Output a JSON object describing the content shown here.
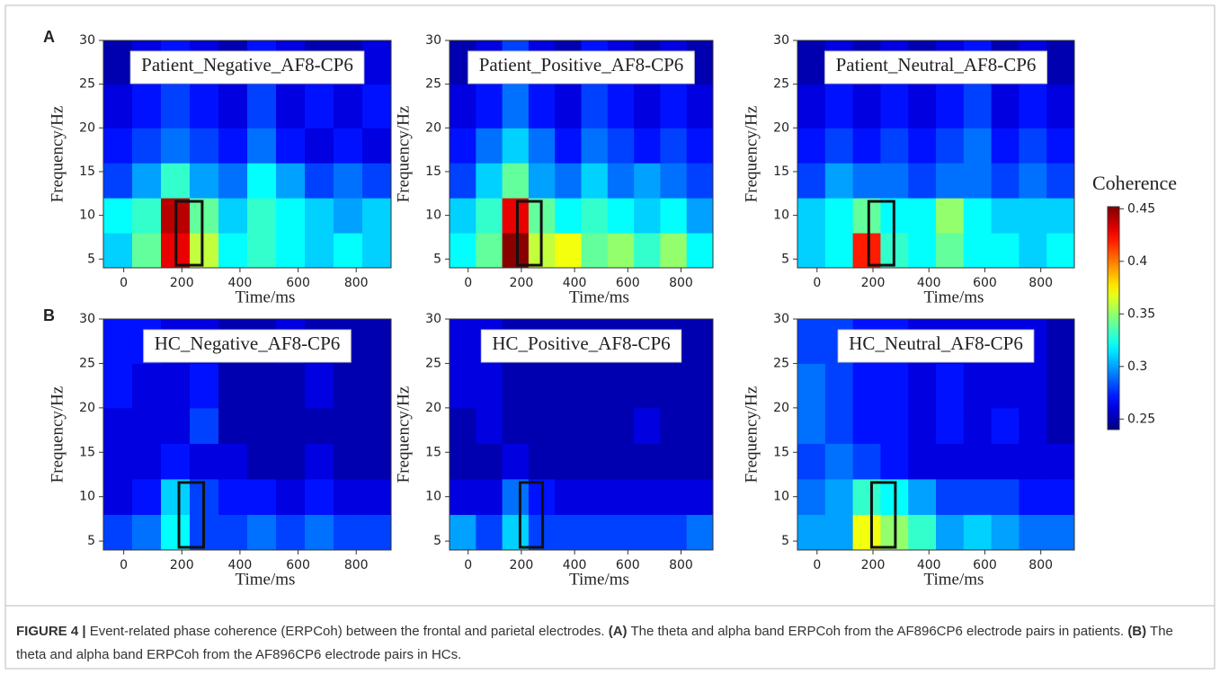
{
  "chart_data": [
    {
      "type": "heatmap",
      "title": "Patient_Negative_AF8-CP6",
      "xlabel": "Time/ms",
      "ylabel": "Frequency/Hz",
      "xlim": [
        -70,
        920
      ],
      "xticks": [
        0,
        200,
        400,
        600,
        800
      ],
      "ylim": [
        4,
        30
      ],
      "yticks": [
        5,
        10,
        15,
        20,
        25,
        30
      ],
      "x_bins": [
        -70,
        29,
        128,
        227,
        326,
        425,
        524,
        623,
        722,
        821,
        920
      ],
      "y_bins": [
        4,
        8,
        12,
        16,
        20,
        25,
        30
      ],
      "values": [
        [
          0.31,
          0.34,
          0.43,
          0.36,
          0.32,
          0.33,
          0.32,
          0.31,
          0.32,
          0.31
        ],
        [
          0.32,
          0.33,
          0.44,
          0.34,
          0.31,
          0.33,
          0.32,
          0.31,
          0.3,
          0.31
        ],
        [
          0.28,
          0.3,
          0.33,
          0.3,
          0.29,
          0.32,
          0.3,
          0.28,
          0.29,
          0.28
        ],
        [
          0.27,
          0.28,
          0.29,
          0.28,
          0.27,
          0.29,
          0.27,
          0.26,
          0.27,
          0.26
        ],
        [
          0.26,
          0.27,
          0.28,
          0.27,
          0.26,
          0.28,
          0.26,
          0.27,
          0.26,
          0.27
        ],
        [
          0.25,
          0.26,
          0.27,
          0.26,
          0.25,
          0.27,
          0.26,
          0.25,
          0.25,
          0.26
        ]
      ],
      "box": {
        "x": [
          180,
          270
        ],
        "y": [
          4.3,
          11.6
        ]
      }
    },
    {
      "type": "heatmap",
      "title": "Patient_Positive_AF8-CP6",
      "xlabel": "Time/ms",
      "ylabel": "Frequency/Hz",
      "xlim": [
        -70,
        920
      ],
      "xticks": [
        0,
        200,
        400,
        600,
        800
      ],
      "ylim": [
        4,
        30
      ],
      "yticks": [
        5,
        10,
        15,
        20,
        25,
        30
      ],
      "x_bins": [
        -70,
        29,
        128,
        227,
        326,
        425,
        524,
        623,
        722,
        821,
        920
      ],
      "y_bins": [
        4,
        8,
        12,
        16,
        20,
        25,
        30
      ],
      "values": [
        [
          0.32,
          0.34,
          0.45,
          0.36,
          0.37,
          0.34,
          0.35,
          0.33,
          0.35,
          0.32
        ],
        [
          0.31,
          0.33,
          0.43,
          0.34,
          0.32,
          0.33,
          0.32,
          0.31,
          0.32,
          0.3
        ],
        [
          0.28,
          0.31,
          0.34,
          0.3,
          0.29,
          0.31,
          0.29,
          0.3,
          0.29,
          0.28
        ],
        [
          0.27,
          0.29,
          0.31,
          0.29,
          0.27,
          0.29,
          0.28,
          0.27,
          0.28,
          0.27
        ],
        [
          0.26,
          0.27,
          0.29,
          0.27,
          0.26,
          0.28,
          0.27,
          0.26,
          0.27,
          0.26
        ],
        [
          0.25,
          0.26,
          0.28,
          0.26,
          0.25,
          0.27,
          0.26,
          0.25,
          0.26,
          0.25
        ]
      ],
      "box": {
        "x": [
          185,
          275
        ],
        "y": [
          4.3,
          11.6
        ]
      }
    },
    {
      "type": "heatmap",
      "title": "Patient_Neutral_AF8-CP6",
      "xlabel": "Time/ms",
      "ylabel": "Frequency/Hz",
      "xlim": [
        -70,
        920
      ],
      "xticks": [
        0,
        200,
        400,
        600,
        800
      ],
      "ylim": [
        4,
        30
      ],
      "yticks": [
        5,
        10,
        15,
        20,
        25,
        30
      ],
      "x_bins": [
        -70,
        29,
        128,
        227,
        326,
        425,
        524,
        623,
        722,
        821,
        920
      ],
      "y_bins": [
        4,
        8,
        12,
        16,
        20,
        25,
        30
      ],
      "values": [
        [
          0.31,
          0.32,
          0.42,
          0.33,
          0.32,
          0.34,
          0.32,
          0.32,
          0.31,
          0.32
        ],
        [
          0.31,
          0.32,
          0.34,
          0.32,
          0.32,
          0.35,
          0.32,
          0.31,
          0.31,
          0.31
        ],
        [
          0.28,
          0.3,
          0.29,
          0.29,
          0.28,
          0.29,
          0.29,
          0.28,
          0.29,
          0.28
        ],
        [
          0.27,
          0.28,
          0.27,
          0.28,
          0.27,
          0.28,
          0.29,
          0.27,
          0.28,
          0.27
        ],
        [
          0.26,
          0.27,
          0.26,
          0.27,
          0.26,
          0.27,
          0.28,
          0.26,
          0.27,
          0.26
        ],
        [
          0.25,
          0.26,
          0.25,
          0.26,
          0.25,
          0.26,
          0.27,
          0.25,
          0.26,
          0.25
        ]
      ],
      "box": {
        "x": [
          185,
          275
        ],
        "y": [
          4.3,
          11.6
        ]
      }
    },
    {
      "type": "heatmap",
      "title": "HC_Negative_AF8-CP6",
      "xlabel": "Time/ms",
      "ylabel": "Frequency/Hz",
      "xlim": [
        -70,
        920
      ],
      "xticks": [
        0,
        200,
        400,
        600,
        800
      ],
      "ylim": [
        4,
        30
      ],
      "yticks": [
        5,
        10,
        15,
        20,
        25,
        30
      ],
      "x_bins": [
        -70,
        29,
        128,
        227,
        326,
        425,
        524,
        623,
        722,
        821,
        920
      ],
      "y_bins": [
        4,
        8,
        12,
        16,
        20,
        25,
        30
      ],
      "values": [
        [
          0.28,
          0.29,
          0.32,
          0.28,
          0.28,
          0.29,
          0.28,
          0.29,
          0.28,
          0.28
        ],
        [
          0.26,
          0.27,
          0.31,
          0.28,
          0.27,
          0.27,
          0.26,
          0.27,
          0.26,
          0.26
        ],
        [
          0.26,
          0.26,
          0.27,
          0.26,
          0.26,
          0.25,
          0.25,
          0.26,
          0.25,
          0.25
        ],
        [
          0.26,
          0.26,
          0.26,
          0.28,
          0.25,
          0.25,
          0.25,
          0.25,
          0.25,
          0.25
        ],
        [
          0.27,
          0.26,
          0.26,
          0.27,
          0.25,
          0.25,
          0.25,
          0.26,
          0.25,
          0.25
        ],
        [
          0.27,
          0.27,
          0.26,
          0.26,
          0.25,
          0.25,
          0.26,
          0.25,
          0.25,
          0.25
        ]
      ],
      "box": {
        "x": [
          190,
          275
        ],
        "y": [
          4.3,
          11.6
        ]
      }
    },
    {
      "type": "heatmap",
      "title": "HC_Positive_AF8-CP6",
      "xlabel": "Time/ms",
      "ylabel": "Frequency/Hz",
      "xlim": [
        -70,
        920
      ],
      "xticks": [
        0,
        200,
        400,
        600,
        800
      ],
      "ylim": [
        4,
        30
      ],
      "yticks": [
        5,
        10,
        15,
        20,
        25,
        30
      ],
      "x_bins": [
        -70,
        29,
        128,
        227,
        326,
        425,
        524,
        623,
        722,
        821,
        920
      ],
      "y_bins": [
        4,
        8,
        12,
        16,
        20,
        25,
        30
      ],
      "values": [
        [
          0.3,
          0.28,
          0.31,
          0.28,
          0.28,
          0.28,
          0.28,
          0.28,
          0.28,
          0.29
        ],
        [
          0.26,
          0.26,
          0.29,
          0.27,
          0.26,
          0.26,
          0.26,
          0.26,
          0.26,
          0.26
        ],
        [
          0.25,
          0.25,
          0.26,
          0.25,
          0.25,
          0.25,
          0.25,
          0.25,
          0.25,
          0.25
        ],
        [
          0.25,
          0.26,
          0.25,
          0.25,
          0.25,
          0.25,
          0.25,
          0.26,
          0.25,
          0.25
        ],
        [
          0.26,
          0.26,
          0.25,
          0.25,
          0.25,
          0.25,
          0.25,
          0.25,
          0.25,
          0.25
        ],
        [
          0.26,
          0.26,
          0.25,
          0.25,
          0.25,
          0.25,
          0.25,
          0.25,
          0.25,
          0.25
        ]
      ],
      "box": {
        "x": [
          195,
          280
        ],
        "y": [
          4.3,
          11.6
        ]
      }
    },
    {
      "type": "heatmap",
      "title": "HC_Neutral_AF8-CP6",
      "xlabel": "Time/ms",
      "ylabel": "Frequency/Hz",
      "xlim": [
        -70,
        920
      ],
      "xticks": [
        0,
        200,
        400,
        600,
        800
      ],
      "ylim": [
        4,
        30
      ],
      "yticks": [
        5,
        10,
        15,
        20,
        25,
        30
      ],
      "x_bins": [
        -70,
        29,
        128,
        227,
        326,
        425,
        524,
        623,
        722,
        821,
        920
      ],
      "y_bins": [
        4,
        8,
        12,
        16,
        20,
        25,
        30
      ],
      "values": [
        [
          0.3,
          0.3,
          0.37,
          0.35,
          0.33,
          0.3,
          0.31,
          0.3,
          0.29,
          0.29
        ],
        [
          0.29,
          0.3,
          0.33,
          0.32,
          0.3,
          0.28,
          0.28,
          0.28,
          0.27,
          0.27
        ],
        [
          0.28,
          0.29,
          0.28,
          0.27,
          0.26,
          0.26,
          0.26,
          0.26,
          0.26,
          0.26
        ],
        [
          0.29,
          0.28,
          0.27,
          0.27,
          0.26,
          0.27,
          0.26,
          0.27,
          0.26,
          0.25
        ],
        [
          0.29,
          0.28,
          0.27,
          0.27,
          0.26,
          0.27,
          0.26,
          0.26,
          0.26,
          0.25
        ],
        [
          0.28,
          0.28,
          0.27,
          0.27,
          0.26,
          0.26,
          0.26,
          0.26,
          0.26,
          0.25
        ]
      ],
      "box": {
        "x": [
          195,
          280
        ],
        "y": [
          4.3,
          11.6
        ]
      }
    }
  ],
  "colorbar": {
    "title": "Coherence",
    "lim": [
      0.24,
      0.452
    ],
    "ticks": [
      0.25,
      0.3,
      0.35,
      0.4,
      0.45
    ],
    "colormap": "jet"
  },
  "panel_labels": [
    "A",
    "B"
  ],
  "caption": [
    {
      "text": "FIGURE 4 |",
      "bold": true
    },
    {
      "text": " Event-related phase coherence (ERPCoh) between the frontal and parietal electrodes. ",
      "bold": false
    },
    {
      "text": "(A)",
      "bold": true
    },
    {
      "text": " The theta and alpha band ERPCoh from the AF896CP6 electrode pairs in patients. ",
      "bold": false
    },
    {
      "text": "(B)",
      "bold": true
    },
    {
      "text": " The theta and alpha band ERPCoh from the AF896CP6 electrode pairs in HCs.",
      "bold": false
    }
  ]
}
